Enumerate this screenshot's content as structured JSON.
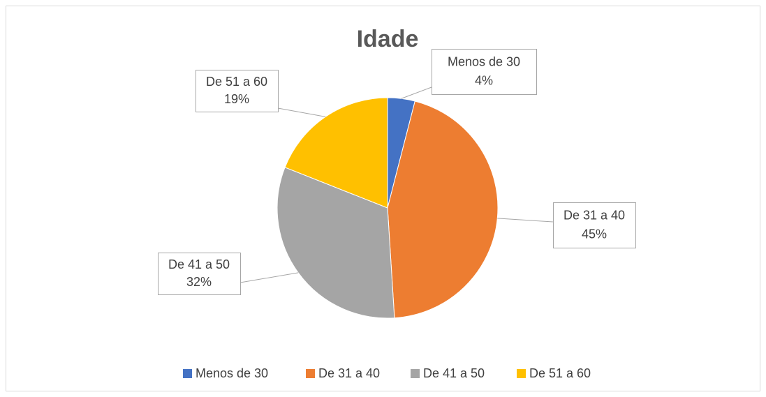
{
  "chart_data": {
    "type": "pie",
    "title": "Idade",
    "categories": [
      "Menos de 30",
      "De 31 a 40",
      "De 41 a 50",
      "De 51 a 60"
    ],
    "values": [
      4,
      45,
      32,
      19
    ],
    "value_labels": [
      "4%",
      "45%",
      "32%",
      "19%"
    ],
    "colors": [
      "#4472c4",
      "#ed7d31",
      "#a5a5a5",
      "#ffc000"
    ],
    "legend": "bottom"
  }
}
